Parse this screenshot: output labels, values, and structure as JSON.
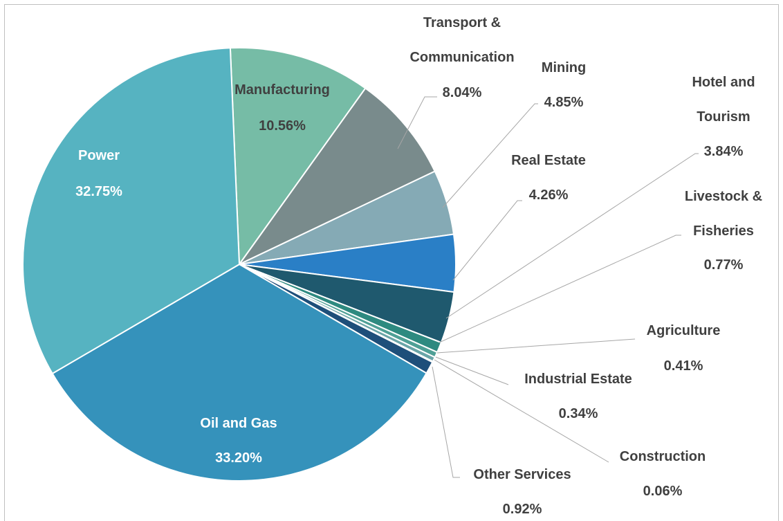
{
  "chart_data": {
    "type": "pie",
    "categories": [
      "Manufacturing",
      "Transport & Communication",
      "Mining",
      "Real Estate",
      "Hotel  and Tourism",
      "Livestock & Fisheries",
      "Agriculture",
      "Industrial Estate",
      "Construction",
      "Other Services",
      "Oil and Gas",
      "Power"
    ],
    "values": [
      10.56,
      8.04,
      4.85,
      4.26,
      3.84,
      0.77,
      0.41,
      0.34,
      0.06,
      0.92,
      33.2,
      32.75
    ],
    "value_labels": [
      "10.56%",
      "8.04%",
      "4.85%",
      "4.26%",
      "3.84%",
      "0.77%",
      "0.41%",
      "0.34%",
      "0.06%",
      "0.92%",
      "33.20%",
      "32.75%"
    ],
    "colors": [
      "#76bca6",
      "#798b8c",
      "#85aab5",
      "#2a7fc6",
      "#1f596e",
      "#2e8a80",
      "#4fa096",
      "#6aa5a8",
      "#a9b5b8",
      "#1e4f7a",
      "#3592bb",
      "#56b3c1"
    ]
  }
}
